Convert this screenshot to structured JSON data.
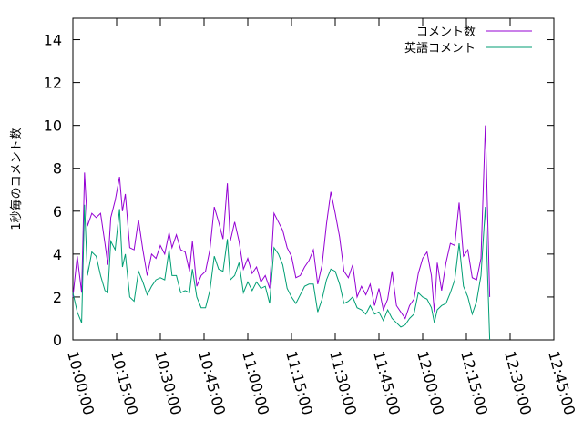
{
  "chart_data": {
    "type": "line",
    "title": "",
    "xlabel": "",
    "ylabel": "1秒毎のコメント数",
    "xlim": [
      "10:00:00",
      "12:45:00"
    ],
    "ylim": [
      0,
      15
    ],
    "y_ticks": [
      0,
      2,
      4,
      6,
      8,
      10,
      12,
      14
    ],
    "x_ticks": [
      "10:00:00",
      "10:15:00",
      "10:30:00",
      "10:45:00",
      "11:00:00",
      "11:15:00",
      "11:30:00",
      "11:45:00",
      "12:00:00",
      "12:15:00",
      "12:30:00",
      "12:45:00"
    ],
    "grid": false,
    "legend_position": "top-right",
    "series": [
      {
        "name": "コメント数",
        "color": "#9400d3",
        "points": [
          [
            "10:00:00",
            2.0
          ],
          [
            "10:01:30",
            3.9
          ],
          [
            "10:03:00",
            2.2
          ],
          [
            "10:04:00",
            7.8
          ],
          [
            "10:05:00",
            5.3
          ],
          [
            "10:06:30",
            5.9
          ],
          [
            "10:08:00",
            5.7
          ],
          [
            "10:09:30",
            5.9
          ],
          [
            "10:11:00",
            4.5
          ],
          [
            "10:12:00",
            3.5
          ],
          [
            "10:13:00",
            5.7
          ],
          [
            "10:14:30",
            6.5
          ],
          [
            "10:16:00",
            7.6
          ],
          [
            "10:17:00",
            6.0
          ],
          [
            "10:18:00",
            6.8
          ],
          [
            "10:19:30",
            4.3
          ],
          [
            "10:21:00",
            4.2
          ],
          [
            "10:22:30",
            5.6
          ],
          [
            "10:24:00",
            4.2
          ],
          [
            "10:25:30",
            3.0
          ],
          [
            "10:27:00",
            4.0
          ],
          [
            "10:28:30",
            3.8
          ],
          [
            "10:30:00",
            4.4
          ],
          [
            "10:31:30",
            4.0
          ],
          [
            "10:33:00",
            5.0
          ],
          [
            "10:34:00",
            4.3
          ],
          [
            "10:35:30",
            4.9
          ],
          [
            "10:37:00",
            4.2
          ],
          [
            "10:38:30",
            4.1
          ],
          [
            "10:40:00",
            3.2
          ],
          [
            "10:41:00",
            4.6
          ],
          [
            "10:42:30",
            2.5
          ],
          [
            "10:44:00",
            3.0
          ],
          [
            "10:45:30",
            3.2
          ],
          [
            "10:47:00",
            4.2
          ],
          [
            "10:48:30",
            6.2
          ],
          [
            "10:50:00",
            5.5
          ],
          [
            "10:51:30",
            4.7
          ],
          [
            "10:53:00",
            7.3
          ],
          [
            "10:54:00",
            4.6
          ],
          [
            "10:55:30",
            5.5
          ],
          [
            "10:57:00",
            4.6
          ],
          [
            "10:58:30",
            3.3
          ],
          [
            "11:00:00",
            3.8
          ],
          [
            "11:01:30",
            3.1
          ],
          [
            "11:03:00",
            3.4
          ],
          [
            "11:04:30",
            2.7
          ],
          [
            "11:06:00",
            3.0
          ],
          [
            "11:07:30",
            2.4
          ],
          [
            "11:09:00",
            5.9
          ],
          [
            "11:10:30",
            5.5
          ],
          [
            "11:12:00",
            5.1
          ],
          [
            "11:13:30",
            4.3
          ],
          [
            "11:15:00",
            3.9
          ],
          [
            "11:16:30",
            2.9
          ],
          [
            "11:18:00",
            3.0
          ],
          [
            "11:19:30",
            3.4
          ],
          [
            "11:21:00",
            3.7
          ],
          [
            "11:22:30",
            4.2
          ],
          [
            "11:24:00",
            2.6
          ],
          [
            "11:25:30",
            3.5
          ],
          [
            "11:27:00",
            5.4
          ],
          [
            "11:28:30",
            6.9
          ],
          [
            "11:30:00",
            5.9
          ],
          [
            "11:31:30",
            4.8
          ],
          [
            "11:33:00",
            3.2
          ],
          [
            "11:34:30",
            2.9
          ],
          [
            "11:36:00",
            3.5
          ],
          [
            "11:37:30",
            2.0
          ],
          [
            "11:39:00",
            2.5
          ],
          [
            "11:40:30",
            2.1
          ],
          [
            "11:42:00",
            2.6
          ],
          [
            "11:43:30",
            1.6
          ],
          [
            "11:45:00",
            2.4
          ],
          [
            "11:46:30",
            1.4
          ],
          [
            "11:48:00",
            1.9
          ],
          [
            "11:49:30",
            3.2
          ],
          [
            "11:51:00",
            1.6
          ],
          [
            "11:52:30",
            1.3
          ],
          [
            "11:54:00",
            1.0
          ],
          [
            "11:55:30",
            1.6
          ],
          [
            "11:57:00",
            1.9
          ],
          [
            "11:58:30",
            3.1
          ],
          [
            "12:00:00",
            3.8
          ],
          [
            "12:01:30",
            4.1
          ],
          [
            "12:03:00",
            3.0
          ],
          [
            "12:04:00",
            1.3
          ],
          [
            "12:05:00",
            3.6
          ],
          [
            "12:06:30",
            2.3
          ],
          [
            "12:08:00",
            3.6
          ],
          [
            "12:09:30",
            4.5
          ],
          [
            "12:11:00",
            4.4
          ],
          [
            "12:12:30",
            6.4
          ],
          [
            "12:14:00",
            3.9
          ],
          [
            "12:15:30",
            4.2
          ],
          [
            "12:17:00",
            2.9
          ],
          [
            "12:18:30",
            2.8
          ],
          [
            "12:20:00",
            3.8
          ],
          [
            "12:21:30",
            10.0
          ],
          [
            "12:23:00",
            2.0
          ]
        ]
      },
      {
        "name": "英語コメント",
        "color": "#009e73",
        "points": [
          [
            "10:00:00",
            2.2
          ],
          [
            "10:01:30",
            1.3
          ],
          [
            "10:03:00",
            0.8
          ],
          [
            "10:04:00",
            6.3
          ],
          [
            "10:05:00",
            3.0
          ],
          [
            "10:06:30",
            4.1
          ],
          [
            "10:08:00",
            3.9
          ],
          [
            "10:09:30",
            3.0
          ],
          [
            "10:11:00",
            2.3
          ],
          [
            "10:12:00",
            2.2
          ],
          [
            "10:13:00",
            4.6
          ],
          [
            "10:14:30",
            4.2
          ],
          [
            "10:16:00",
            6.1
          ],
          [
            "10:17:00",
            3.4
          ],
          [
            "10:18:00",
            4.0
          ],
          [
            "10:19:30",
            2.0
          ],
          [
            "10:21:00",
            1.8
          ],
          [
            "10:22:30",
            3.2
          ],
          [
            "10:24:00",
            2.7
          ],
          [
            "10:25:30",
            2.1
          ],
          [
            "10:27:00",
            2.5
          ],
          [
            "10:28:30",
            2.8
          ],
          [
            "10:30:00",
            2.9
          ],
          [
            "10:31:30",
            2.8
          ],
          [
            "10:33:00",
            4.2
          ],
          [
            "10:34:00",
            3.0
          ],
          [
            "10:35:30",
            3.0
          ],
          [
            "10:37:00",
            2.2
          ],
          [
            "10:38:30",
            2.3
          ],
          [
            "10:40:00",
            2.2
          ],
          [
            "10:41:00",
            3.3
          ],
          [
            "10:42:30",
            2.0
          ],
          [
            "10:44:00",
            1.5
          ],
          [
            "10:45:30",
            1.5
          ],
          [
            "10:47:00",
            2.3
          ],
          [
            "10:48:30",
            3.9
          ],
          [
            "10:50:00",
            3.3
          ],
          [
            "10:51:30",
            3.2
          ],
          [
            "10:53:00",
            4.7
          ],
          [
            "10:54:00",
            2.8
          ],
          [
            "10:55:30",
            3.0
          ],
          [
            "10:57:00",
            3.6
          ],
          [
            "10:58:30",
            2.2
          ],
          [
            "11:00:00",
            2.7
          ],
          [
            "11:01:30",
            2.3
          ],
          [
            "11:03:00",
            2.7
          ],
          [
            "11:04:30",
            2.4
          ],
          [
            "11:06:00",
            2.5
          ],
          [
            "11:07:30",
            1.7
          ],
          [
            "11:09:00",
            4.3
          ],
          [
            "11:10:30",
            4.0
          ],
          [
            "11:12:00",
            3.5
          ],
          [
            "11:13:30",
            2.4
          ],
          [
            "11:15:00",
            2.0
          ],
          [
            "11:16:30",
            1.7
          ],
          [
            "11:18:00",
            2.1
          ],
          [
            "11:19:30",
            2.5
          ],
          [
            "11:21:00",
            2.6
          ],
          [
            "11:22:30",
            2.6
          ],
          [
            "11:24:00",
            1.3
          ],
          [
            "11:25:30",
            1.9
          ],
          [
            "11:27:00",
            2.8
          ],
          [
            "11:28:30",
            3.3
          ],
          [
            "11:30:00",
            3.2
          ],
          [
            "11:31:30",
            2.6
          ],
          [
            "11:33:00",
            1.7
          ],
          [
            "11:34:30",
            1.8
          ],
          [
            "11:36:00",
            2.0
          ],
          [
            "11:37:30",
            1.5
          ],
          [
            "11:39:00",
            1.4
          ],
          [
            "11:40:30",
            1.2
          ],
          [
            "11:42:00",
            1.6
          ],
          [
            "11:43:30",
            1.2
          ],
          [
            "11:45:00",
            1.3
          ],
          [
            "11:46:30",
            0.9
          ],
          [
            "11:48:00",
            1.4
          ],
          [
            "11:49:30",
            1.0
          ],
          [
            "11:51:00",
            0.8
          ],
          [
            "11:52:30",
            0.6
          ],
          [
            "11:54:00",
            0.7
          ],
          [
            "11:55:30",
            1.0
          ],
          [
            "11:57:00",
            1.2
          ],
          [
            "11:58:30",
            2.2
          ],
          [
            "12:00:00",
            2.0
          ],
          [
            "12:01:30",
            1.9
          ],
          [
            "12:03:00",
            1.5
          ],
          [
            "12:04:00",
            0.8
          ],
          [
            "12:05:00",
            1.4
          ],
          [
            "12:06:30",
            1.6
          ],
          [
            "12:08:00",
            1.7
          ],
          [
            "12:09:30",
            2.2
          ],
          [
            "12:11:00",
            2.8
          ],
          [
            "12:12:30",
            4.5
          ],
          [
            "12:14:00",
            2.5
          ],
          [
            "12:15:30",
            2.0
          ],
          [
            "12:17:00",
            1.2
          ],
          [
            "12:18:30",
            1.8
          ],
          [
            "12:20:00",
            3.0
          ],
          [
            "12:21:30",
            6.2
          ],
          [
            "12:23:00",
            0.0
          ]
        ]
      }
    ]
  }
}
